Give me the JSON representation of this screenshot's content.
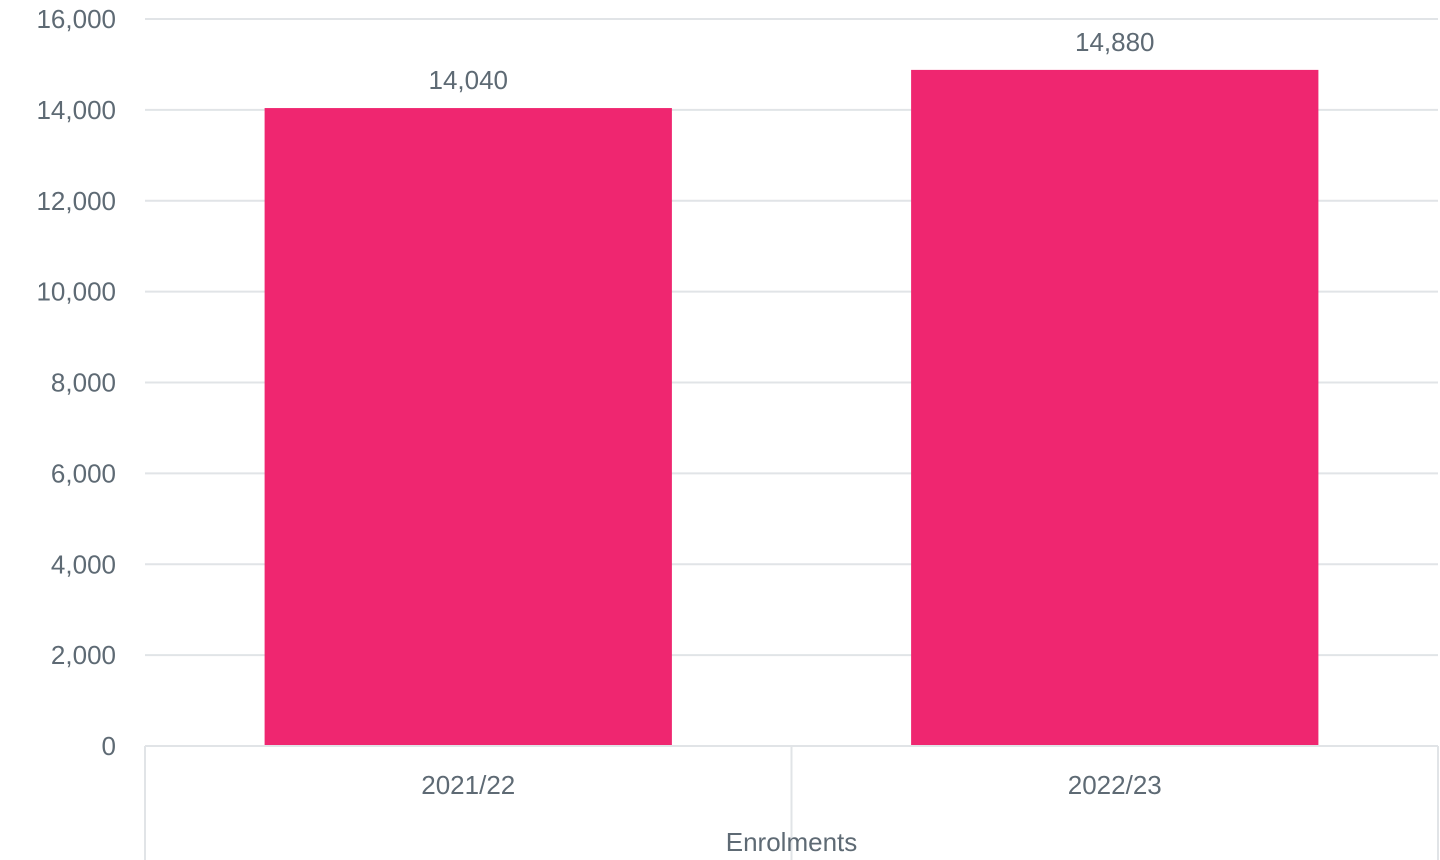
{
  "chart_data": {
    "type": "bar",
    "categories": [
      "2021/22",
      "2022/23"
    ],
    "values": [
      14040,
      14880
    ],
    "data_labels": [
      "14,040",
      "14,880"
    ],
    "xlabel": "Enrolments",
    "ylabel": "",
    "ylim": [
      0,
      16000
    ],
    "yticks": [
      0,
      2000,
      4000,
      6000,
      8000,
      10000,
      12000,
      14000,
      16000
    ],
    "ytick_labels": [
      "0",
      "2,000",
      "4,000",
      "6,000",
      "8,000",
      "10,000",
      "12,000",
      "14,000",
      "16,000"
    ],
    "grid": true,
    "legend": "none",
    "bar_color": "#ef2670",
    "grid_color": "#e1e4e7",
    "text_color": "#5e6a74"
  }
}
